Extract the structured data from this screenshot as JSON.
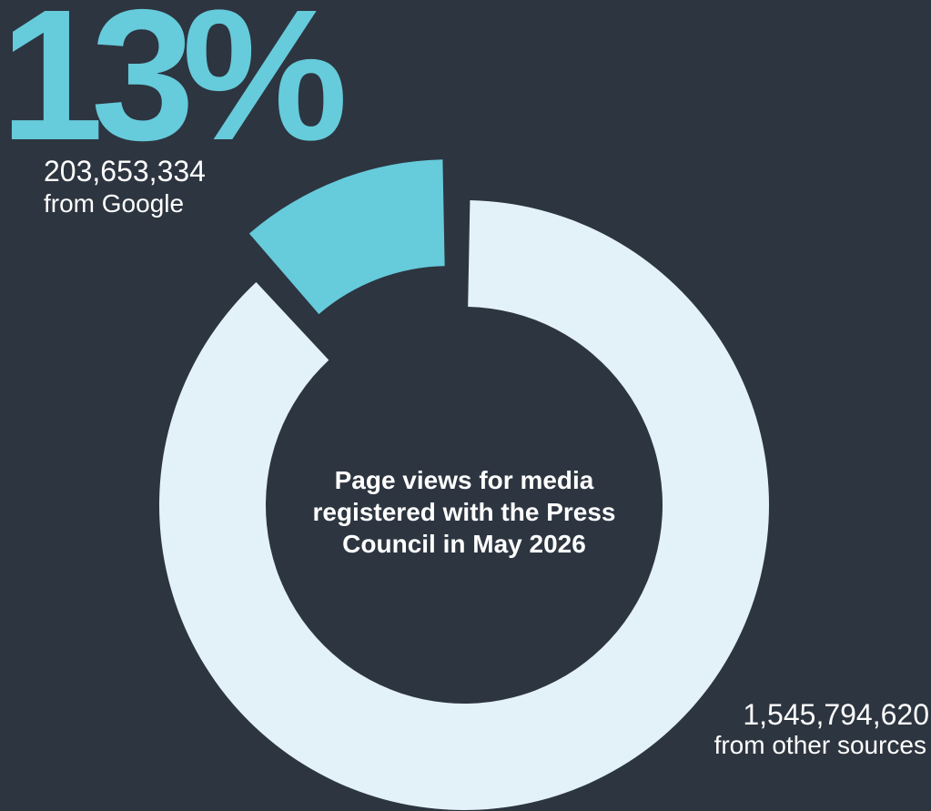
{
  "colors": {
    "background": "#2d3540",
    "google": "#66cbdb",
    "other": "#e3f2f8",
    "text": "#ffffff"
  },
  "headline": {
    "percent": "13%"
  },
  "google": {
    "value": "203,653,334",
    "label": "from Google"
  },
  "other": {
    "value": "1,545,794,620",
    "label": "from other sources"
  },
  "center": {
    "title": "Page views for media registered with the Press Council in May 2026"
  },
  "chart_data": {
    "type": "pie",
    "title": "Page views for media registered with the Press Council in May 2026",
    "slices": [
      {
        "name": "from Google",
        "value": 203653334,
        "percent": 13,
        "color": "#66cbdb",
        "exploded": true
      },
      {
        "name": "from other sources",
        "value": 1545794620,
        "percent": 87,
        "color": "#e3f2f8",
        "exploded": false
      }
    ],
    "donut": true
  }
}
